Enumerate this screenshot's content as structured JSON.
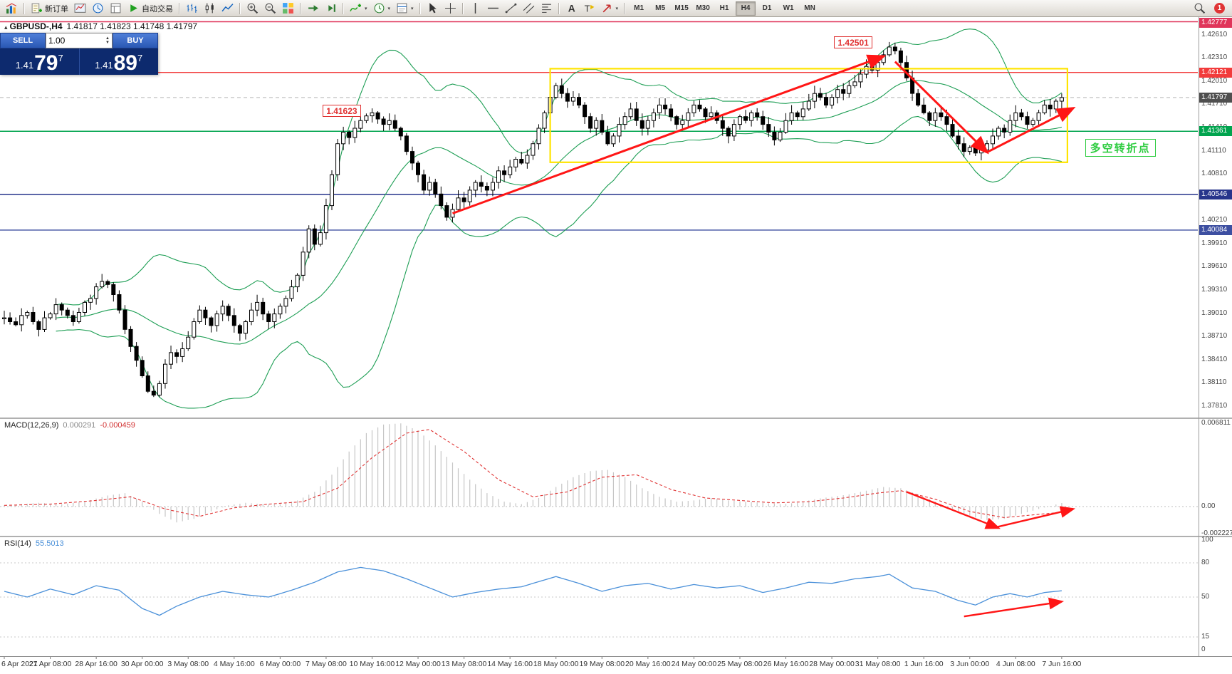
{
  "toolbar": {
    "new_order_label": "新订单",
    "auto_trading_label": "自动交易",
    "timeframes": [
      "M1",
      "M5",
      "M15",
      "M30",
      "H1",
      "H4",
      "D1",
      "W1",
      "MN"
    ],
    "active_timeframe": "H4",
    "notification_count": "1",
    "groups": [
      {
        "items": [
          {
            "icon": "app-icon",
            "name": "app-icon-button"
          }
        ]
      },
      {
        "items": [
          {
            "icon": "new-order-icon",
            "name": "new-order-button",
            "label": "新订单"
          },
          {
            "icon": "charts-grid-icon"
          },
          {
            "icon": "market-watch-icon"
          },
          {
            "icon": "data-window-icon"
          },
          {
            "icon": "auto-trading-icon",
            "name": "auto-trading-button",
            "label": "自动交易"
          }
        ]
      },
      {
        "items": [
          {
            "icon": "bar-chart-icon"
          },
          {
            "icon": "candlestick-chart-icon"
          },
          {
            "icon": "line-chart-icon"
          }
        ]
      },
      {
        "items": [
          {
            "icon": "zoom-in-icon"
          },
          {
            "icon": "zoom-out-icon"
          },
          {
            "icon": "tile-windows-icon"
          }
        ]
      },
      {
        "items": [
          {
            "icon": "auto-scroll-icon"
          },
          {
            "icon": "chart-shift-icon"
          }
        ]
      },
      {
        "items": [
          {
            "icon": "indicators-icon",
            "caret": true
          },
          {
            "icon": "periods-icon",
            "caret": true
          },
          {
            "icon": "templates-icon",
            "caret": true
          }
        ]
      },
      {
        "items": [
          {
            "icon": "cursor-icon"
          },
          {
            "icon": "crosshair-icon"
          }
        ]
      },
      {
        "items": [
          {
            "icon": "vertical-line-icon"
          },
          {
            "icon": "horizontal-line-icon"
          },
          {
            "icon": "trendline-icon"
          },
          {
            "icon": "channel-icon"
          },
          {
            "icon": "fibonacci-icon"
          }
        ]
      },
      {
        "items": [
          {
            "icon": "text-icon"
          },
          {
            "icon": "label-icon"
          },
          {
            "icon": "arrows-icon",
            "caret": true
          }
        ]
      }
    ]
  },
  "trade_panel": {
    "sell_label": "SELL",
    "buy_label": "BUY",
    "volume": "1.00",
    "sell": {
      "prefix": "1.41",
      "big": "79",
      "sup": "7"
    },
    "buy": {
      "prefix": "1.41",
      "big": "89",
      "sup": "7"
    }
  },
  "chart": {
    "symbol_period": "GBPUSD-,H4",
    "ohlc": "1.41817 1.41823 1.41748 1.41797",
    "bid_price": 1.41797,
    "time_labels": [
      "6 Apr 2021",
      "27 Apr 08:00",
      "28 Apr 16:00",
      "30 Apr 00:00",
      "3 May 08:00",
      "4 May 16:00",
      "6 May 00:00",
      "7 May 08:00",
      "10 May 16:00",
      "12 May 00:00",
      "13 May 08:00",
      "14 May 16:00",
      "18 May 00:00",
      "19 May 08:00",
      "20 May 16:00",
      "24 May 00:00",
      "25 May 08:00",
      "26 May 16:00",
      "28 May 00:00",
      "31 May 08:00",
      "1 Jun 16:00",
      "3 Jun 00:00",
      "4 Jun 08:00",
      "7 Jun 16:00"
    ],
    "price_ticks": [
      "1.42610",
      "1.42310",
      "1.42010",
      "1.41710",
      "1.41410",
      "1.41110",
      "1.40810",
      "1.40510",
      "1.40210",
      "1.39910",
      "1.39610",
      "1.39310",
      "1.39010",
      "1.38710",
      "1.38410",
      "1.38110",
      "1.37810"
    ],
    "price_markers": [
      {
        "value": "1.42777",
        "color": "#e0355a"
      },
      {
        "value": "1.42121",
        "color": "#f23b3b"
      },
      {
        "value": "1.41797",
        "color": "#4f4f4f"
      },
      {
        "value": "1.41361",
        "color": "#00a44e"
      },
      {
        "value": "1.40546",
        "color": "#27348b"
      },
      {
        "value": "1.40084",
        "color": "#3d4fa1"
      }
    ],
    "hlines": [
      {
        "price": 1.42777,
        "color": "#e0355a"
      },
      {
        "price": 1.42121,
        "color": "#f23b3b"
      },
      {
        "price": 1.41361,
        "color": "#00a44e"
      },
      {
        "price": 1.40546,
        "color": "#27348b"
      },
      {
        "price": 1.40084,
        "color": "#3d4fa1"
      }
    ],
    "bollinger": {
      "period": 20,
      "deviation": 2
    },
    "extremes": [
      {
        "bar": 26,
        "low": 1.3795
      },
      {
        "bar": 64,
        "high": 1.41623
      },
      {
        "bar": 154,
        "high": 1.42501
      },
      {
        "bar": 169,
        "low": 1.4105
      }
    ],
    "closes": [
      1.3895,
      1.389,
      1.3886,
      1.3898,
      1.3902,
      1.389,
      1.388,
      1.3895,
      1.39,
      1.3912,
      1.3905,
      1.3898,
      1.389,
      1.3902,
      1.3915,
      1.392,
      1.3935,
      1.3942,
      1.3938,
      1.3925,
      1.3905,
      1.388,
      1.3858,
      1.384,
      1.382,
      1.38,
      1.3795,
      1.381,
      1.3835,
      1.385,
      1.3845,
      1.3855,
      1.387,
      1.389,
      1.3905,
      1.3895,
      1.3885,
      1.39,
      1.391,
      1.3898,
      1.3885,
      1.3875,
      1.389,
      1.3905,
      1.3915,
      1.39,
      1.389,
      1.39,
      1.391,
      1.392,
      1.3935,
      1.395,
      1.398,
      1.401,
      1.399,
      1.4005,
      1.404,
      1.408,
      1.412,
      1.4135,
      1.4128,
      1.414,
      1.415,
      1.4156,
      1.416,
      1.4152,
      1.4145,
      1.415,
      1.414,
      1.413,
      1.411,
      1.4095,
      1.408,
      1.406,
      1.407,
      1.4055,
      1.404,
      1.4025,
      1.4035,
      1.405,
      1.4045,
      1.406,
      1.407,
      1.4065,
      1.406,
      1.407,
      1.4085,
      1.408,
      1.409,
      1.41,
      1.4095,
      1.4105,
      1.412,
      1.414,
      1.416,
      1.418,
      1.4195,
      1.4185,
      1.4175,
      1.418,
      1.417,
      1.4155,
      1.414,
      1.415,
      1.4135,
      1.412,
      1.413,
      1.4145,
      1.4155,
      1.4165,
      1.415,
      1.414,
      1.415,
      1.416,
      1.417,
      1.4165,
      1.4155,
      1.4145,
      1.415,
      1.416,
      1.417,
      1.4165,
      1.4155,
      1.416,
      1.415,
      1.414,
      1.413,
      1.4145,
      1.4155,
      1.415,
      1.416,
      1.4155,
      1.4145,
      1.4135,
      1.4125,
      1.4135,
      1.415,
      1.416,
      1.4155,
      1.4165,
      1.4175,
      1.4185,
      1.418,
      1.417,
      1.418,
      1.419,
      1.4185,
      1.4195,
      1.42,
      1.421,
      1.422,
      1.4215,
      1.4225,
      1.4235,
      1.4245,
      1.424,
      1.4225,
      1.4205,
      1.4185,
      1.417,
      1.416,
      1.415,
      1.416,
      1.4155,
      1.4145,
      1.413,
      1.412,
      1.411,
      1.4115,
      1.4108,
      1.4112,
      1.412,
      1.413,
      1.414,
      1.4135,
      1.415,
      1.416,
      1.4155,
      1.4145,
      1.415,
      1.416,
      1.417,
      1.4165,
      1.4175,
      1.41797
    ]
  },
  "annotations": {
    "high_label": {
      "text": "1.42501",
      "bar": 149,
      "price": 1.42501
    },
    "low_label": {
      "text": "1.41623",
      "bar": 60,
      "price": 1.41623
    },
    "note": {
      "text": "多空转折点",
      "bar": 195,
      "price": 1.4115
    },
    "range_box": {
      "from_bar": 95,
      "to_bar": 185,
      "top_price": 1.4217,
      "bottom_price": 1.4096
    },
    "trend_arrows": [
      {
        "from": {
          "bar": 78,
          "price": 1.403
        },
        "to": {
          "bar": 153,
          "price": 1.4233
        }
      },
      {
        "from": {
          "bar": 155,
          "price": 1.4226
        },
        "to": {
          "bar": 171,
          "price": 1.4109
        }
      },
      {
        "from": {
          "bar": 171,
          "price": 1.4109
        },
        "to": {
          "bar": 186,
          "price": 1.4166
        }
      }
    ]
  },
  "macd": {
    "name": "MACD(12,26,9)",
    "value_main": "0.000291",
    "value_signal": "-0.000459",
    "axis": [
      {
        "label": "0.006811",
        "val": 0.006811
      },
      {
        "label": "0.00",
        "val": 0
      },
      {
        "label": "-0.002227",
        "val": -0.002227
      }
    ],
    "histogram_keyframes": [
      [
        0,
        0.0001
      ],
      [
        6,
        0.0003
      ],
      [
        10,
        0.0002
      ],
      [
        14,
        0.0004
      ],
      [
        18,
        0.0009
      ],
      [
        21,
        0.0011
      ],
      [
        24,
        0.0004
      ],
      [
        27,
        -0.0006
      ],
      [
        30,
        -0.0013
      ],
      [
        33,
        -0.001
      ],
      [
        36,
        -0.0004
      ],
      [
        39,
        0.0001
      ],
      [
        42,
        0.0003
      ],
      [
        45,
        0.0002
      ],
      [
        48,
        0.0002
      ],
      [
        51,
        0.0005
      ],
      [
        54,
        0.0012
      ],
      [
        57,
        0.0026
      ],
      [
        60,
        0.0045
      ],
      [
        63,
        0.006
      ],
      [
        66,
        0.0067
      ],
      [
        69,
        0.0068
      ],
      [
        72,
        0.0062
      ],
      [
        75,
        0.005
      ],
      [
        78,
        0.0036
      ],
      [
        81,
        0.0022
      ],
      [
        84,
        0.0011
      ],
      [
        87,
        0.0004
      ],
      [
        90,
        0.0002
      ],
      [
        93,
        0.0007
      ],
      [
        96,
        0.0016
      ],
      [
        99,
        0.0024
      ],
      [
        102,
        0.0029
      ],
      [
        105,
        0.003
      ],
      [
        108,
        0.0024
      ],
      [
        111,
        0.0015
      ],
      [
        114,
        0.0008
      ],
      [
        117,
        0.0004
      ],
      [
        120,
        0.0005
      ],
      [
        123,
        0.0007
      ],
      [
        126,
        0.0005
      ],
      [
        129,
        0.0004
      ],
      [
        132,
        0.0003
      ],
      [
        135,
        0.0002
      ],
      [
        138,
        0.0003
      ],
      [
        141,
        0.0006
      ],
      [
        144,
        0.0008
      ],
      [
        147,
        0.001
      ],
      [
        150,
        0.0013
      ],
      [
        153,
        0.0016
      ],
      [
        156,
        0.0015
      ],
      [
        159,
        0.001
      ],
      [
        162,
        0.0004
      ],
      [
        165,
        -0.0002
      ],
      [
        168,
        -0.0008
      ],
      [
        171,
        -0.0011
      ],
      [
        174,
        -0.001
      ],
      [
        177,
        -0.0006
      ],
      [
        180,
        -0.0002
      ],
      [
        184,
        0.00029
      ]
    ],
    "signal_keyframes": [
      [
        0,
        0.0001
      ],
      [
        8,
        0.0002
      ],
      [
        16,
        0.0005
      ],
      [
        22,
        0.0008
      ],
      [
        28,
        -0.0002
      ],
      [
        34,
        -0.0008
      ],
      [
        40,
        -0.0001
      ],
      [
        46,
        0.0002
      ],
      [
        52,
        0.0004
      ],
      [
        58,
        0.0015
      ],
      [
        64,
        0.004
      ],
      [
        70,
        0.006
      ],
      [
        74,
        0.0063
      ],
      [
        80,
        0.0045
      ],
      [
        86,
        0.0022
      ],
      [
        92,
        0.0008
      ],
      [
        98,
        0.0012
      ],
      [
        104,
        0.0024
      ],
      [
        110,
        0.0026
      ],
      [
        116,
        0.0014
      ],
      [
        122,
        0.0007
      ],
      [
        128,
        0.0005
      ],
      [
        134,
        0.0003
      ],
      [
        140,
        0.0004
      ],
      [
        146,
        0.0007
      ],
      [
        152,
        0.0011
      ],
      [
        156,
        0.0013
      ],
      [
        162,
        0.0006
      ],
      [
        168,
        -0.0004
      ],
      [
        174,
        -0.0009
      ],
      [
        184,
        -0.00046
      ]
    ],
    "arrows": [
      {
        "from": {
          "bar": 157,
          "val": 0.0012
        },
        "to": {
          "bar": 173,
          "val": -0.00175
        }
      },
      {
        "from": {
          "bar": 172,
          "val": -0.00175
        },
        "to": {
          "bar": 186,
          "val": -0.0002
        }
      }
    ]
  },
  "rsi": {
    "name": "RSI(14)",
    "value": "55.5013",
    "axis": [
      {
        "label": "100",
        "val": 100
      },
      {
        "label": "80",
        "val": 80
      },
      {
        "label": "50",
        "val": 50
      },
      {
        "label": "15",
        "val": 15
      },
      {
        "label": "0",
        "val": 0
      }
    ],
    "levels": [
      80,
      50,
      15
    ],
    "keyframes": [
      [
        0,
        55
      ],
      [
        4,
        50
      ],
      [
        8,
        57
      ],
      [
        12,
        52
      ],
      [
        16,
        60
      ],
      [
        20,
        56
      ],
      [
        24,
        40
      ],
      [
        27,
        34
      ],
      [
        30,
        42
      ],
      [
        34,
        50
      ],
      [
        38,
        55
      ],
      [
        42,
        52
      ],
      [
        46,
        50
      ],
      [
        50,
        56
      ],
      [
        54,
        63
      ],
      [
        58,
        72
      ],
      [
        62,
        76
      ],
      [
        66,
        73
      ],
      [
        70,
        66
      ],
      [
        74,
        58
      ],
      [
        78,
        50
      ],
      [
        82,
        54
      ],
      [
        86,
        57
      ],
      [
        90,
        59
      ],
      [
        94,
        65
      ],
      [
        96,
        68
      ],
      [
        100,
        62
      ],
      [
        104,
        55
      ],
      [
        108,
        60
      ],
      [
        112,
        62
      ],
      [
        116,
        57
      ],
      [
        120,
        61
      ],
      [
        124,
        58
      ],
      [
        128,
        60
      ],
      [
        132,
        54
      ],
      [
        136,
        58
      ],
      [
        140,
        63
      ],
      [
        144,
        62
      ],
      [
        148,
        66
      ],
      [
        152,
        68
      ],
      [
        154,
        70
      ],
      [
        158,
        58
      ],
      [
        162,
        55
      ],
      [
        166,
        47
      ],
      [
        169,
        43
      ],
      [
        172,
        50
      ],
      [
        175,
        53
      ],
      [
        178,
        50
      ],
      [
        181,
        54
      ],
      [
        184,
        55.5
      ]
    ],
    "arrows": [
      {
        "from": {
          "bar": 167,
          "val": 33
        },
        "to": {
          "bar": 184,
          "val": 46
        }
      }
    ]
  },
  "colors": {
    "band_green": "#1d9e54",
    "rsi_blue": "#4a90d9",
    "macd_hist": "#c6c6c6",
    "macd_signal": "#e03434",
    "arrow_red": "#ff1616",
    "range_yellow": "#ffe400"
  }
}
